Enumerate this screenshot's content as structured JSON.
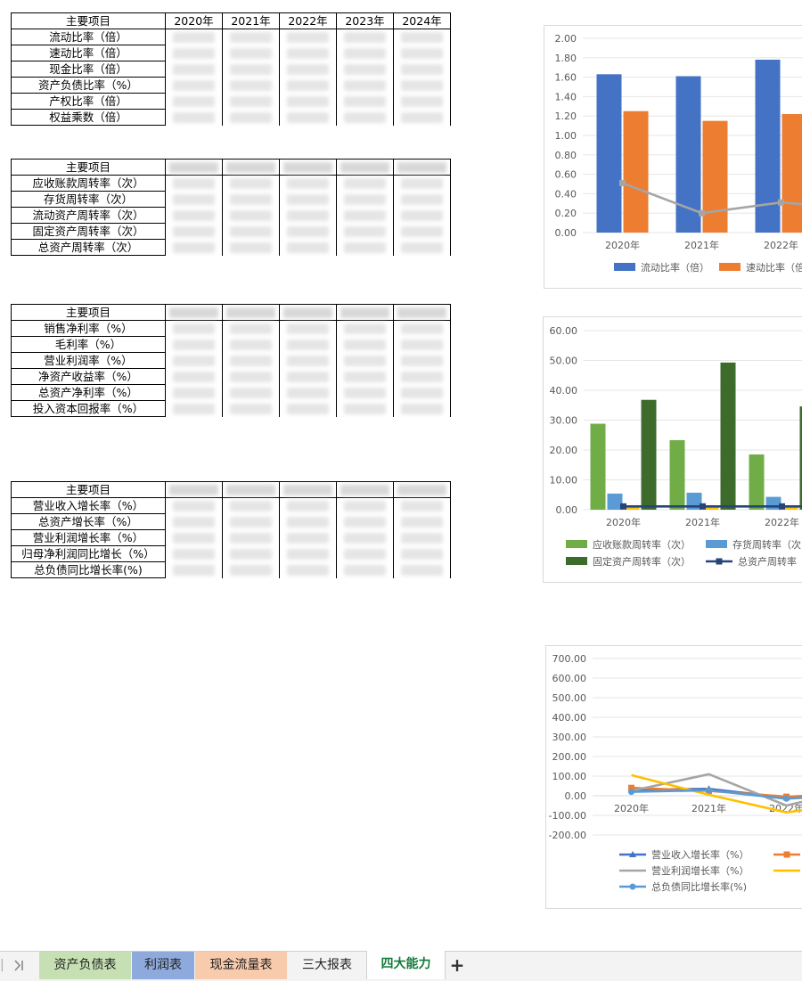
{
  "tables": [
    {
      "header": "主要项目",
      "years": [
        "2020年",
        "2021年",
        "2022年",
        "2023年",
        "2024年"
      ],
      "rows": [
        "流动比率（倍）",
        "速动比率（倍）",
        "现金比率（倍）",
        "资产负债比率（%）",
        "产权比率（倍）",
        "权益乘数（倍）"
      ]
    },
    {
      "header": "主要项目",
      "years": [],
      "rows": [
        "应收账款周转率（次）",
        "存货周转率（次）",
        "流动资产周转率（次）",
        "固定资产周转率（次）",
        "总资产周转率（次）"
      ]
    },
    {
      "header": "主要项目",
      "years": [],
      "rows": [
        "销售净利率（%）",
        "毛利率（%）",
        "营业利润率（%）",
        "净资产收益率（%）",
        "总资产净利率（%）",
        "投入资本回报率（%）"
      ]
    },
    {
      "header": "主要项目",
      "years": [],
      "rows": [
        "营业收入增长率（%）",
        "总资产增长率（%）",
        "营业利润增长率（%）",
        "归母净利润同比增长（%）",
        "总负债同比增长率(%)"
      ]
    }
  ],
  "chart_data": [
    {
      "type": "bar",
      "categories": [
        "2020年",
        "2021年",
        "2022年"
      ],
      "series": [
        {
          "name": "流动比率（倍）",
          "type": "bar",
          "color": "#4472c4",
          "values": [
            1.63,
            1.61,
            1.78
          ]
        },
        {
          "name": "速动比率（倍）",
          "type": "bar",
          "color": "#ed7d31",
          "values": [
            1.25,
            1.15,
            1.22
          ]
        },
        {
          "name": "",
          "type": "line",
          "color": "#a5a5a5",
          "values": [
            0.51,
            0.2,
            0.31
          ]
        }
      ],
      "y_ticks": [
        "0.00",
        "0.20",
        "0.40",
        "0.60",
        "0.80",
        "1.00",
        "1.20",
        "1.40",
        "1.60",
        "1.80",
        "2.00"
      ],
      "ylim": [
        0,
        2
      ],
      "legend": [
        "流动比率（倍）",
        "速动比率（倍"
      ],
      "legend_position": "bottom",
      "grid": true
    },
    {
      "type": "bar",
      "categories": [
        "2020年",
        "2021年",
        "2022年"
      ],
      "series": [
        {
          "name": "应收账款周转率（次）",
          "type": "bar",
          "color": "#70ad47",
          "values": [
            28.8,
            23.3,
            18.5
          ]
        },
        {
          "name": "存货周转率（次）",
          "type": "bar",
          "color": "#5b9bd5",
          "values": [
            5.4,
            5.7,
            4.3
          ]
        },
        {
          "name": "",
          "type": "bar",
          "color": "#ffc000",
          "values": [
            0.9,
            0.9,
            0.9
          ]
        },
        {
          "name": "固定资产周转率（次）",
          "type": "bar",
          "color": "#3d6b2c",
          "values": [
            36.8,
            49.3,
            34.6
          ]
        },
        {
          "name": "总资产周转率（次）",
          "type": "line",
          "color": "#264478",
          "values": [
            1.1,
            1.1,
            1.1
          ]
        }
      ],
      "y_ticks": [
        "0.00",
        "10.00",
        "20.00",
        "30.00",
        "40.00",
        "50.00",
        "60.00"
      ],
      "ylim": [
        0,
        60
      ],
      "legend": [
        "应收账款周转率（次）",
        "存货周转率（次",
        "固定资产周转率（次）",
        "总资产周转率"
      ],
      "legend_position": "bottom",
      "grid": true
    },
    {
      "type": "line",
      "categories": [
        "2020年",
        "2021年",
        "2022年"
      ],
      "series": [
        {
          "name": "营业收入增长率（%）",
          "type": "line",
          "color": "#4472c4",
          "marker": "triangle",
          "values": [
            30,
            35,
            -10
          ]
        },
        {
          "name": "",
          "type": "line",
          "color": "#ed7d31",
          "marker": "square",
          "values": [
            40,
            25,
            -5
          ]
        },
        {
          "name": "营业利润增长率（%）",
          "type": "line",
          "color": "#a5a5a5",
          "marker": "none",
          "values": [
            25,
            110,
            -50
          ]
        },
        {
          "name": "",
          "type": "line",
          "color": "#ffc000",
          "marker": "none",
          "values": [
            105,
            5,
            -85
          ]
        },
        {
          "name": "总负债同比增长率(%)",
          "type": "line",
          "color": "#5b9bd5",
          "marker": "circle",
          "values": [
            20,
            28,
            -15
          ]
        }
      ],
      "y_ticks": [
        "-200.00",
        "-100.00",
        "0.00",
        "100.00",
        "200.00",
        "300.00",
        "400.00",
        "500.00",
        "600.00",
        "700.00"
      ],
      "ylim": [
        -200,
        700
      ],
      "legend": [
        "营业收入增长率（%）",
        "营业利润增长率（%）",
        "总负债同比增长率(%)"
      ],
      "legend_position": "bottom",
      "grid": true
    }
  ],
  "sheet_tabs": [
    {
      "label": "资产负债表",
      "bg": "#c6e0b4",
      "active": false
    },
    {
      "label": "利润表",
      "bg": "#8ea9db",
      "active": false
    },
    {
      "label": "现金流量表",
      "bg": "#f8cbad",
      "active": false
    },
    {
      "label": "三大报表",
      "bg": "#f3f3f3",
      "active": false
    },
    {
      "label": "四大能力",
      "bg": "#ffffff",
      "active": true
    }
  ],
  "nav": {
    "last_sheet_icon": "chevron-last-icon",
    "add_icon": "plus-icon",
    "add_label": "+"
  }
}
